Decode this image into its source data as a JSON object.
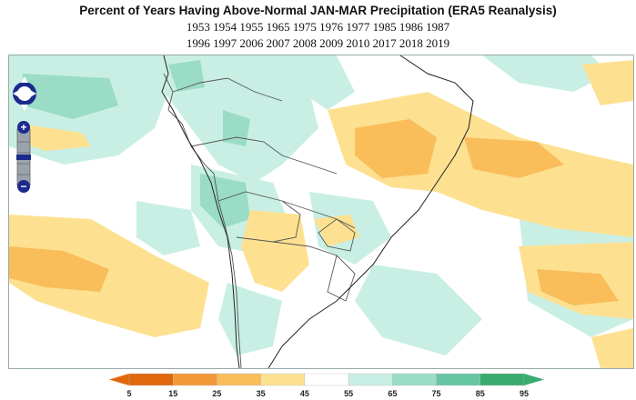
{
  "title": "Percent of Years Having Above-Normal JAN-MAR Precipitation (ERA5 Reanalysis)",
  "years_line1": "1953 1954 1955 1965 1975 1976 1977 1985 1986 1987",
  "years_line2": "1996 1997 2006 2007 2008 2009 2010 2017 2018 2019",
  "legend": {
    "ticks": [
      "5",
      "15",
      "25",
      "35",
      "45",
      "55",
      "65",
      "75",
      "85",
      "95"
    ],
    "colors": [
      "#e0680e",
      "#f39a38",
      "#f9bd5a",
      "#fde191",
      "#ffffff",
      "#c9efe4",
      "#9adcc6",
      "#66c6a3",
      "#3aab6e"
    ]
  },
  "controls": {
    "pan": "pan-control",
    "zoom_in": "+",
    "zoom_out": "−"
  }
}
